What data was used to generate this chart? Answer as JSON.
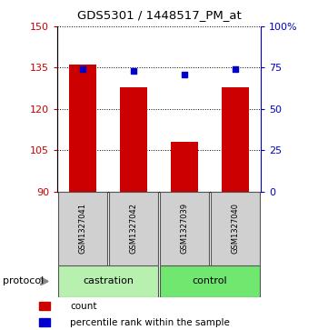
{
  "title": "GDS5301 / 1448517_PM_at",
  "samples": [
    "GSM1327041",
    "GSM1327042",
    "GSM1327039",
    "GSM1327040"
  ],
  "count_values": [
    136,
    128,
    108,
    128
  ],
  "percentile_values": [
    74,
    73,
    71,
    74
  ],
  "left_ylim": [
    90,
    150
  ],
  "left_yticks": [
    90,
    105,
    120,
    135,
    150
  ],
  "right_ylim": [
    0,
    100
  ],
  "right_yticks": [
    0,
    25,
    50,
    75,
    100
  ],
  "right_yticklabels": [
    "0",
    "25",
    "50",
    "75",
    "100%"
  ],
  "bar_color": "#cc0000",
  "dot_color": "#0000cc",
  "castration_color": "#b8f0b0",
  "control_color": "#70e870",
  "sample_box_color": "#d0d0d0",
  "label_color_left": "#cc0000",
  "label_color_right": "#0000cc",
  "background_color": "#ffffff",
  "bar_width": 0.55,
  "protocol_label": "protocol",
  "legend_count": "count",
  "legend_percentile": "percentile rank within the sample",
  "group_spans": [
    [
      0,
      1,
      "castration"
    ],
    [
      2,
      3,
      "control"
    ]
  ]
}
